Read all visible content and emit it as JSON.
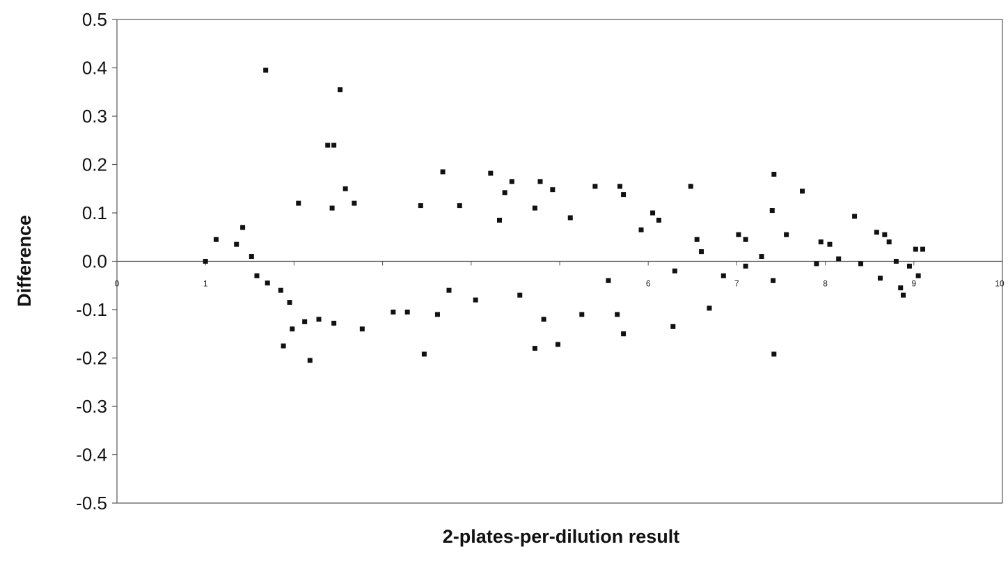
{
  "chart_data": {
    "type": "scatter",
    "title": "",
    "xlabel": "2-plates-per-dilution result",
    "ylabel": "Difference",
    "xlim": [
      0,
      10
    ],
    "ylim": [
      -0.5,
      0.5
    ],
    "x_ticks": [
      0,
      1,
      2,
      3,
      4,
      5,
      6,
      7,
      8,
      9,
      10
    ],
    "x_tick_labels": [
      "0",
      "1",
      "",
      "",
      "",
      "",
      "6",
      "7",
      "8",
      "9",
      "10"
    ],
    "y_ticks": [
      -0.5,
      -0.4,
      -0.3,
      -0.2,
      -0.1,
      0.0,
      0.1,
      0.2,
      0.3,
      0.4,
      0.5
    ],
    "y_tick_labels": [
      "-0.5",
      "-0.4",
      "-0.3",
      "-0.2",
      "-0.1",
      "0.0",
      "0.1",
      "0.2",
      "0.3",
      "0.4",
      "0.5"
    ],
    "grid": false,
    "legend": "none",
    "marker_color": "#111111",
    "reference_line_y": 0.0,
    "series": [
      {
        "points": [
          [
            1.68,
            0.395
          ],
          [
            2.52,
            0.355
          ],
          [
            2.38,
            0.24
          ],
          [
            2.45,
            0.24
          ],
          [
            4.22,
            0.182
          ],
          [
            7.42,
            0.18
          ],
          [
            7.74,
            0.145
          ],
          [
            6.48,
            0.155
          ],
          [
            5.4,
            0.155
          ],
          [
            5.68,
            0.155
          ],
          [
            4.46,
            0.165
          ],
          [
            4.78,
            0.165
          ],
          [
            4.38,
            0.142
          ],
          [
            5.72,
            0.138
          ],
          [
            4.92,
            0.148
          ],
          [
            2.58,
            0.15
          ],
          [
            7.4,
            0.105
          ],
          [
            8.33,
            0.093
          ],
          [
            2.43,
            0.11
          ],
          [
            2.68,
            0.12
          ],
          [
            2.05,
            0.12
          ],
          [
            3.43,
            0.115
          ],
          [
            1.42,
            0.07
          ],
          [
            1.12,
            0.045
          ],
          [
            1.35,
            0.035
          ],
          [
            1.0,
            0.0
          ],
          [
            1.52,
            0.01
          ],
          [
            1.58,
            -0.03
          ],
          [
            1.7,
            -0.045
          ],
          [
            1.85,
            -0.06
          ],
          [
            1.95,
            -0.085
          ],
          [
            2.12,
            -0.125
          ],
          [
            2.28,
            -0.12
          ],
          [
            1.88,
            -0.175
          ],
          [
            1.98,
            -0.14
          ],
          [
            2.18,
            -0.205
          ],
          [
            2.45,
            -0.128
          ],
          [
            2.77,
            -0.14
          ],
          [
            3.47,
            -0.192
          ],
          [
            4.72,
            -0.18
          ],
          [
            4.98,
            -0.172
          ],
          [
            4.82,
            -0.12
          ],
          [
            5.72,
            -0.15
          ],
          [
            6.28,
            -0.135
          ],
          [
            6.69,
            -0.097
          ],
          [
            7.42,
            -0.192
          ],
          [
            7.41,
            -0.04
          ],
          [
            8.88,
            -0.07
          ],
          [
            8.85,
            -0.055
          ],
          [
            9.05,
            -0.03
          ],
          [
            9.1,
            0.025
          ],
          [
            9.02,
            0.025
          ],
          [
            8.67,
            0.055
          ],
          [
            8.58,
            0.06
          ],
          [
            8.72,
            0.04
          ],
          [
            8.05,
            0.035
          ],
          [
            7.95,
            0.04
          ],
          [
            7.56,
            0.055
          ],
          [
            7.1,
            0.045
          ],
          [
            7.02,
            0.055
          ],
          [
            7.28,
            0.01
          ],
          [
            7.1,
            -0.01
          ],
          [
            7.9,
            -0.005
          ],
          [
            8.15,
            0.005
          ],
          [
            8.4,
            -0.005
          ],
          [
            8.62,
            -0.035
          ],
          [
            8.95,
            -0.01
          ],
          [
            8.8,
            0.0
          ],
          [
            6.12,
            0.085
          ],
          [
            6.55,
            0.045
          ],
          [
            6.05,
            0.1
          ],
          [
            5.92,
            0.065
          ],
          [
            4.32,
            0.085
          ],
          [
            3.87,
            0.115
          ],
          [
            3.68,
            0.185
          ],
          [
            3.12,
            -0.105
          ],
          [
            3.28,
            -0.105
          ],
          [
            3.62,
            -0.11
          ],
          [
            4.72,
            0.11
          ],
          [
            5.12,
            0.09
          ],
          [
            3.75,
            -0.06
          ],
          [
            4.55,
            -0.07
          ],
          [
            5.55,
            -0.04
          ],
          [
            6.3,
            -0.02
          ],
          [
            6.85,
            -0.03
          ],
          [
            5.25,
            -0.11
          ],
          [
            5.65,
            -0.11
          ],
          [
            4.05,
            -0.08
          ],
          [
            6.6,
            0.02
          ]
        ]
      }
    ]
  }
}
